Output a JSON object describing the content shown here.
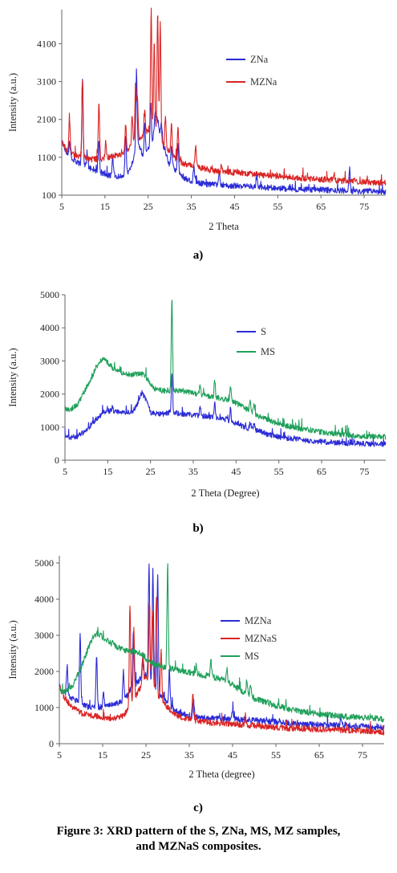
{
  "chart_data": [
    {
      "type": "line",
      "panel_label": "a)",
      "xlabel": "2 Theta",
      "ylabel": "Intensity (a.u.)",
      "xlim": [
        5,
        80
      ],
      "ylim": [
        100,
        5000
      ],
      "xticks": [
        5,
        15,
        25,
        35,
        45,
        55,
        65,
        75
      ],
      "yticks": [
        100,
        1100,
        2100,
        3100,
        4100
      ],
      "legend": "right",
      "series": [
        {
          "name": "ZNa",
          "color": "#2b2bd6",
          "x": [
            5,
            6,
            8,
            10,
            12,
            14,
            16,
            18,
            20,
            21,
            22.5,
            24,
            25,
            26,
            27,
            28,
            29,
            30,
            32,
            34,
            36,
            38,
            40,
            45,
            50,
            55,
            60,
            65,
            70,
            75,
            80
          ],
          "y": [
            1600,
            1250,
            1000,
            900,
            800,
            700,
            620,
            600,
            650,
            800,
            1500,
            1100,
            1300,
            1500,
            2200,
            1600,
            1200,
            900,
            700,
            500,
            450,
            400,
            380,
            350,
            320,
            280,
            260,
            240,
            220,
            200,
            180
          ],
          "peaks": [
            [
              6.8,
              1500
            ],
            [
              9.8,
              3200
            ],
            [
              10.9,
              1200
            ],
            [
              13.6,
              1600
            ],
            [
              16.8,
              1100
            ],
            [
              19.8,
              1700
            ],
            [
              22.3,
              3400
            ],
            [
              24.2,
              2000
            ],
            [
              25.6,
              2600
            ],
            [
              26.6,
              2300
            ],
            [
              28.1,
              2000
            ],
            [
              30.4,
              1400
            ],
            [
              31.9,
              1500
            ],
            [
              35.6,
              900
            ],
            [
              41.5,
              650
            ],
            [
              50.1,
              600
            ],
            [
              71.6,
              800
            ]
          ]
        },
        {
          "name": "MZNa",
          "color": "#d92424",
          "x": [
            5,
            6,
            8,
            10,
            12,
            14,
            16,
            18,
            20,
            22,
            24,
            25,
            26,
            27,
            28,
            30,
            32,
            34,
            36,
            38,
            40,
            45,
            50,
            55,
            60,
            65,
            70,
            75,
            80
          ],
          "y": [
            1500,
            1300,
            1150,
            1100,
            1050,
            1050,
            1100,
            1150,
            1250,
            1500,
            1700,
            1800,
            1700,
            1600,
            1500,
            1200,
            1000,
            900,
            850,
            800,
            750,
            700,
            650,
            600,
            550,
            520,
            480,
            450,
            420
          ],
          "peaks": [
            [
              6.8,
              2100
            ],
            [
              9.8,
              3200
            ],
            [
              13.6,
              2500
            ],
            [
              15.2,
              1500
            ],
            [
              19.8,
              2000
            ],
            [
              21.3,
              2200
            ],
            [
              22.1,
              3000
            ],
            [
              22.5,
              2700
            ],
            [
              24.2,
              2300
            ],
            [
              25.7,
              5000
            ],
            [
              26.4,
              4200
            ],
            [
              27.2,
              4900
            ],
            [
              27.8,
              4700
            ],
            [
              29.0,
              2200
            ],
            [
              30.4,
              2000
            ],
            [
              31.9,
              1900
            ],
            [
              36.0,
              1400
            ],
            [
              42,
              900
            ],
            [
              68,
              700
            ]
          ]
        }
      ]
    },
    {
      "type": "line",
      "panel_label": "b)",
      "xlabel": "2 Theta (Degree)",
      "ylabel": "Intensity (a.u.)",
      "xlim": [
        5,
        80
      ],
      "ylim": [
        0,
        5000
      ],
      "xticks": [
        5,
        15,
        25,
        35,
        45,
        55,
        65,
        75
      ],
      "yticks": [
        0,
        1000,
        2000,
        3000,
        4000,
        5000
      ],
      "legend": "right",
      "series": [
        {
          "name": "S",
          "color": "#2b2bd6",
          "x": [
            5,
            6,
            8,
            10,
            12,
            14,
            16,
            18,
            20,
            21,
            22,
            23,
            24,
            25,
            26,
            28,
            30,
            32,
            34,
            36,
            38,
            40,
            42,
            44,
            46,
            48,
            50,
            52,
            55,
            60,
            65,
            70,
            75,
            80
          ],
          "y": [
            700,
            680,
            720,
            900,
            1200,
            1450,
            1500,
            1450,
            1450,
            1500,
            1700,
            2050,
            1800,
            1450,
            1400,
            1400,
            1450,
            1400,
            1380,
            1350,
            1320,
            1300,
            1250,
            1150,
            1050,
            950,
            900,
            800,
            700,
            620,
            560,
            520,
            500,
            480
          ],
          "peaks": [
            [
              30.0,
              2600
            ],
            [
              36.6,
              1600
            ],
            [
              40.0,
              1750
            ],
            [
              43.7,
              1550
            ],
            [
              48.3,
              1150
            ],
            [
              49.2,
              1150
            ],
            [
              58.5,
              650
            ]
          ]
        },
        {
          "name": "MS",
          "color": "#1fa05a",
          "x": [
            5,
            6,
            8,
            10,
            12,
            13,
            14,
            15,
            16,
            18,
            20,
            22,
            23,
            24,
            25,
            26,
            28,
            30,
            32,
            34,
            36,
            38,
            40,
            42,
            44,
            46,
            48,
            50,
            55,
            60,
            65,
            70,
            75,
            80
          ],
          "y": [
            1550,
            1500,
            1700,
            2200,
            2700,
            2950,
            3050,
            2950,
            2800,
            2650,
            2600,
            2600,
            2600,
            2500,
            2300,
            2150,
            2100,
            2100,
            2100,
            2050,
            2000,
            1950,
            1900,
            1850,
            1800,
            1650,
            1500,
            1350,
            1100,
            950,
            850,
            770,
            720,
            700
          ],
          "peaks": [
            [
              30.0,
              4900
            ],
            [
              36.6,
              2300
            ],
            [
              40.0,
              2400
            ],
            [
              43.7,
              2200
            ],
            [
              48.3,
              1800
            ],
            [
              49.2,
              1700
            ]
          ]
        }
      ]
    },
    {
      "type": "line",
      "panel_label": "c)",
      "xlabel": "2 Theta (degree)",
      "ylabel": "Intensity (a.u.)",
      "xlim": [
        5,
        80
      ],
      "ylim": [
        0,
        5200
      ],
      "xticks": [
        5,
        15,
        25,
        35,
        45,
        55,
        65,
        75
      ],
      "yticks": [
        0,
        1000,
        2000,
        3000,
        4000,
        5000
      ],
      "legend": "right",
      "series": [
        {
          "name": "MZNa",
          "color": "#2b2bd6",
          "x": [
            5,
            6,
            8,
            10,
            12,
            14,
            16,
            18,
            20,
            22,
            24,
            25,
            26,
            27,
            28,
            30,
            32,
            34,
            36,
            38,
            40,
            45,
            50,
            55,
            60,
            65,
            70,
            75,
            80
          ],
          "y": [
            1600,
            1400,
            1250,
            1100,
            1000,
            1000,
            1050,
            1100,
            1200,
            1600,
            1800,
            1900,
            1800,
            1600,
            1400,
            1100,
            900,
            800,
            750,
            720,
            700,
            680,
            650,
            600,
            550,
            520,
            500,
            480,
            450
          ],
          "peaks": [
            [
              6.8,
              2150
            ],
            [
              9.8,
              3100
            ],
            [
              13.6,
              2500
            ],
            [
              15.2,
              1400
            ],
            [
              19.8,
              2000
            ],
            [
              22.1,
              3100
            ],
            [
              24.2,
              2300
            ],
            [
              25.7,
              5000
            ],
            [
              26.6,
              4800
            ],
            [
              27.7,
              4700
            ],
            [
              30.4,
              2000
            ],
            [
              36.0,
              1200
            ],
            [
              45,
              900
            ],
            [
              70,
              700
            ]
          ]
        },
        {
          "name": "MZNaS",
          "color": "#d92424",
          "x": [
            5,
            6,
            8,
            10,
            12,
            14,
            16,
            18,
            20,
            22,
            24,
            25,
            26,
            27,
            28,
            30,
            32,
            34,
            36,
            38,
            40,
            45,
            50,
            55,
            60,
            65,
            70,
            75,
            80
          ],
          "y": [
            1600,
            1300,
            1000,
            850,
            780,
            750,
            700,
            700,
            800,
            1200,
            1600,
            1800,
            1700,
            1500,
            1300,
            1000,
            800,
            700,
            650,
            600,
            580,
            550,
            500,
            450,
            420,
            400,
            380,
            350,
            320
          ],
          "peaks": [
            [
              21.3,
              3900
            ],
            [
              22.2,
              3200
            ],
            [
              24.3,
              2500
            ],
            [
              25.8,
              4000
            ],
            [
              26.5,
              3700
            ],
            [
              27.4,
              4000
            ],
            [
              28.5,
              2600
            ],
            [
              35.8,
              1400
            ],
            [
              48,
              800
            ]
          ]
        },
        {
          "name": "MS",
          "color": "#1fa05a",
          "x": [
            5,
            6,
            8,
            10,
            12,
            13,
            14,
            15,
            16,
            18,
            20,
            22,
            24,
            25,
            26,
            28,
            30,
            32,
            34,
            36,
            38,
            40,
            42,
            44,
            46,
            48,
            50,
            55,
            60,
            65,
            70,
            75,
            80
          ],
          "y": [
            1500,
            1400,
            1600,
            2100,
            2750,
            3000,
            3050,
            2950,
            2850,
            2700,
            2600,
            2550,
            2500,
            2350,
            2250,
            2150,
            2100,
            2050,
            2000,
            1950,
            1900,
            1850,
            1800,
            1700,
            1550,
            1400,
            1250,
            1050,
            900,
            820,
            760,
            720,
            680
          ],
          "peaks": [
            [
              30.0,
              4900
            ],
            [
              36.6,
              2150
            ],
            [
              40.0,
              2300
            ],
            [
              43.7,
              2050
            ],
            [
              48.3,
              1750
            ],
            [
              49.2,
              1650
            ]
          ]
        }
      ]
    }
  ],
  "caption_line1": "Figure 3: XRD pattern of the S, ZNa, MS, MZ samples,",
  "caption_line2": "and MZNaS composites."
}
